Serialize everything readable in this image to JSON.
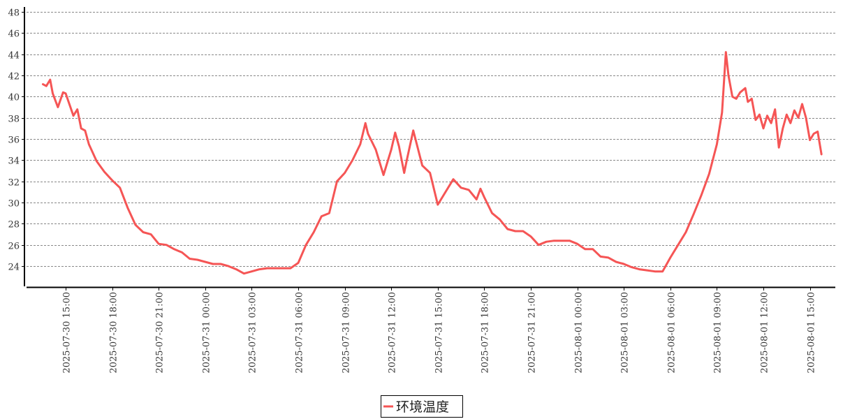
{
  "chart_data": {
    "type": "line",
    "title": "",
    "xlabel": "",
    "ylabel": "",
    "ylim": [
      22,
      48.5
    ],
    "grid": true,
    "legend_position": "bottom",
    "y_ticks": [
      24,
      26,
      28,
      30,
      32,
      34,
      36,
      38,
      40,
      42,
      44,
      46,
      48
    ],
    "x_ticks": [
      "2025-07-30 15:00",
      "2025-07-30 18:00",
      "2025-07-30 21:00",
      "2025-07-31 00:00",
      "2025-07-31 03:00",
      "2025-07-31 06:00",
      "2025-07-31 09:00",
      "2025-07-31 12:00",
      "2025-07-31 15:00",
      "2025-07-31 18:00",
      "2025-07-31 21:00",
      "2025-08-01 00:00",
      "2025-08-01 03:00",
      "2025-08-01 06:00",
      "2025-08-01 09:00",
      "2025-08-01 12:00",
      "2025-08-01 15:00"
    ],
    "series": [
      {
        "name": "环境温度",
        "color": "#f55555",
        "points": [
          [
            "2025-07-30 13:30",
            41.2
          ],
          [
            "2025-07-30 13:45",
            41.0
          ],
          [
            "2025-07-30 14:00",
            41.6
          ],
          [
            "2025-07-30 14:10",
            40.3
          ],
          [
            "2025-07-30 14:30",
            39.0
          ],
          [
            "2025-07-30 14:50",
            40.4
          ],
          [
            "2025-07-30 15:00",
            40.3
          ],
          [
            "2025-07-30 15:30",
            38.2
          ],
          [
            "2025-07-30 15:45",
            38.8
          ],
          [
            "2025-07-30 16:00",
            37.0
          ],
          [
            "2025-07-30 16:15",
            36.8
          ],
          [
            "2025-07-30 16:30",
            35.5
          ],
          [
            "2025-07-30 17:00",
            33.9
          ],
          [
            "2025-07-30 17:30",
            32.9
          ],
          [
            "2025-07-30 18:00",
            32.1
          ],
          [
            "2025-07-30 18:30",
            31.4
          ],
          [
            "2025-07-30 19:00",
            29.5
          ],
          [
            "2025-07-30 19:30",
            27.9
          ],
          [
            "2025-07-30 20:00",
            27.2
          ],
          [
            "2025-07-30 20:30",
            27.0
          ],
          [
            "2025-07-30 21:00",
            26.1
          ],
          [
            "2025-07-30 21:30",
            26.0
          ],
          [
            "2025-07-30 22:00",
            25.6
          ],
          [
            "2025-07-30 22:30",
            25.3
          ],
          [
            "2025-07-30 23:00",
            24.7
          ],
          [
            "2025-07-30 23:30",
            24.6
          ],
          [
            "2025-07-31 00:00",
            24.4
          ],
          [
            "2025-07-31 00:30",
            24.2
          ],
          [
            "2025-07-31 01:00",
            24.2
          ],
          [
            "2025-07-31 01:30",
            24.0
          ],
          [
            "2025-07-31 02:00",
            23.7
          ],
          [
            "2025-07-31 02:30",
            23.3
          ],
          [
            "2025-07-31 03:00",
            23.5
          ],
          [
            "2025-07-31 03:30",
            23.7
          ],
          [
            "2025-07-31 04:00",
            23.8
          ],
          [
            "2025-07-31 04:30",
            23.8
          ],
          [
            "2025-07-31 05:00",
            23.8
          ],
          [
            "2025-07-31 05:30",
            23.8
          ],
          [
            "2025-07-31 06:00",
            24.3
          ],
          [
            "2025-07-31 06:30",
            26.0
          ],
          [
            "2025-07-31 07:00",
            27.2
          ],
          [
            "2025-07-31 07:30",
            28.7
          ],
          [
            "2025-07-31 08:00",
            29.0
          ],
          [
            "2025-07-31 08:30",
            32.0
          ],
          [
            "2025-07-31 09:00",
            32.8
          ],
          [
            "2025-07-31 09:30",
            34.0
          ],
          [
            "2025-07-31 10:00",
            35.5
          ],
          [
            "2025-07-31 10:20",
            37.5
          ],
          [
            "2025-07-31 10:30",
            36.5
          ],
          [
            "2025-07-31 11:00",
            35.0
          ],
          [
            "2025-07-31 11:30",
            32.6
          ],
          [
            "2025-07-31 12:00",
            35.0
          ],
          [
            "2025-07-31 12:15",
            36.6
          ],
          [
            "2025-07-31 12:30",
            35.3
          ],
          [
            "2025-07-31 12:50",
            32.8
          ],
          [
            "2025-07-31 13:00",
            34.0
          ],
          [
            "2025-07-31 13:25",
            36.8
          ],
          [
            "2025-07-31 14:00",
            33.5
          ],
          [
            "2025-07-31 14:30",
            32.8
          ],
          [
            "2025-07-31 15:00",
            29.8
          ],
          [
            "2025-07-31 15:30",
            31.0
          ],
          [
            "2025-07-31 16:00",
            32.2
          ],
          [
            "2025-07-31 16:30",
            31.4
          ],
          [
            "2025-07-31 17:00",
            31.2
          ],
          [
            "2025-07-31 17:30",
            30.3
          ],
          [
            "2025-07-31 17:45",
            31.3
          ],
          [
            "2025-07-31 18:00",
            30.5
          ],
          [
            "2025-07-31 18:30",
            29.0
          ],
          [
            "2025-07-31 19:00",
            28.4
          ],
          [
            "2025-07-31 19:30",
            27.5
          ],
          [
            "2025-07-31 20:00",
            27.3
          ],
          [
            "2025-07-31 20:30",
            27.3
          ],
          [
            "2025-07-31 21:00",
            26.8
          ],
          [
            "2025-07-31 21:30",
            26.0
          ],
          [
            "2025-07-31 22:00",
            26.3
          ],
          [
            "2025-07-31 22:30",
            26.4
          ],
          [
            "2025-07-31 23:00",
            26.4
          ],
          [
            "2025-07-31 23:30",
            26.4
          ],
          [
            "2025-08-01 00:00",
            26.1
          ],
          [
            "2025-08-01 00:30",
            25.6
          ],
          [
            "2025-08-01 01:00",
            25.6
          ],
          [
            "2025-08-01 01:30",
            24.9
          ],
          [
            "2025-08-01 02:00",
            24.8
          ],
          [
            "2025-08-01 02:30",
            24.4
          ],
          [
            "2025-08-01 03:00",
            24.2
          ],
          [
            "2025-08-01 03:30",
            23.9
          ],
          [
            "2025-08-01 04:00",
            23.7
          ],
          [
            "2025-08-01 04:30",
            23.6
          ],
          [
            "2025-08-01 05:00",
            23.5
          ],
          [
            "2025-08-01 05:30",
            23.5
          ],
          [
            "2025-08-01 06:00",
            24.8
          ],
          [
            "2025-08-01 06:30",
            26.0
          ],
          [
            "2025-08-01 07:00",
            27.2
          ],
          [
            "2025-08-01 07:30",
            28.9
          ],
          [
            "2025-08-01 08:00",
            30.7
          ],
          [
            "2025-08-01 08:30",
            32.7
          ],
          [
            "2025-08-01 09:00",
            35.5
          ],
          [
            "2025-08-01 09:20",
            38.5
          ],
          [
            "2025-08-01 09:35",
            44.2
          ],
          [
            "2025-08-01 09:45",
            42.0
          ],
          [
            "2025-08-01 10:00",
            40.0
          ],
          [
            "2025-08-01 10:15",
            39.8
          ],
          [
            "2025-08-01 10:30",
            40.4
          ],
          [
            "2025-08-01 10:50",
            40.8
          ],
          [
            "2025-08-01 11:00",
            39.5
          ],
          [
            "2025-08-01 11:15",
            39.8
          ],
          [
            "2025-08-01 11:30",
            37.8
          ],
          [
            "2025-08-01 11:45",
            38.3
          ],
          [
            "2025-08-01 12:00",
            37.0
          ],
          [
            "2025-08-01 12:15",
            38.2
          ],
          [
            "2025-08-01 12:30",
            37.5
          ],
          [
            "2025-08-01 12:45",
            38.8
          ],
          [
            "2025-08-01 13:00",
            35.2
          ],
          [
            "2025-08-01 13:15",
            37.0
          ],
          [
            "2025-08-01 13:30",
            38.3
          ],
          [
            "2025-08-01 13:45",
            37.5
          ],
          [
            "2025-08-01 14:00",
            38.7
          ],
          [
            "2025-08-01 14:15",
            38.0
          ],
          [
            "2025-08-01 14:30",
            39.3
          ],
          [
            "2025-08-01 14:45",
            38.0
          ],
          [
            "2025-08-01 15:00",
            35.9
          ],
          [
            "2025-08-01 15:15",
            36.5
          ],
          [
            "2025-08-01 15:30",
            36.7
          ],
          [
            "2025-08-01 15:45",
            34.5
          ]
        ]
      }
    ]
  }
}
